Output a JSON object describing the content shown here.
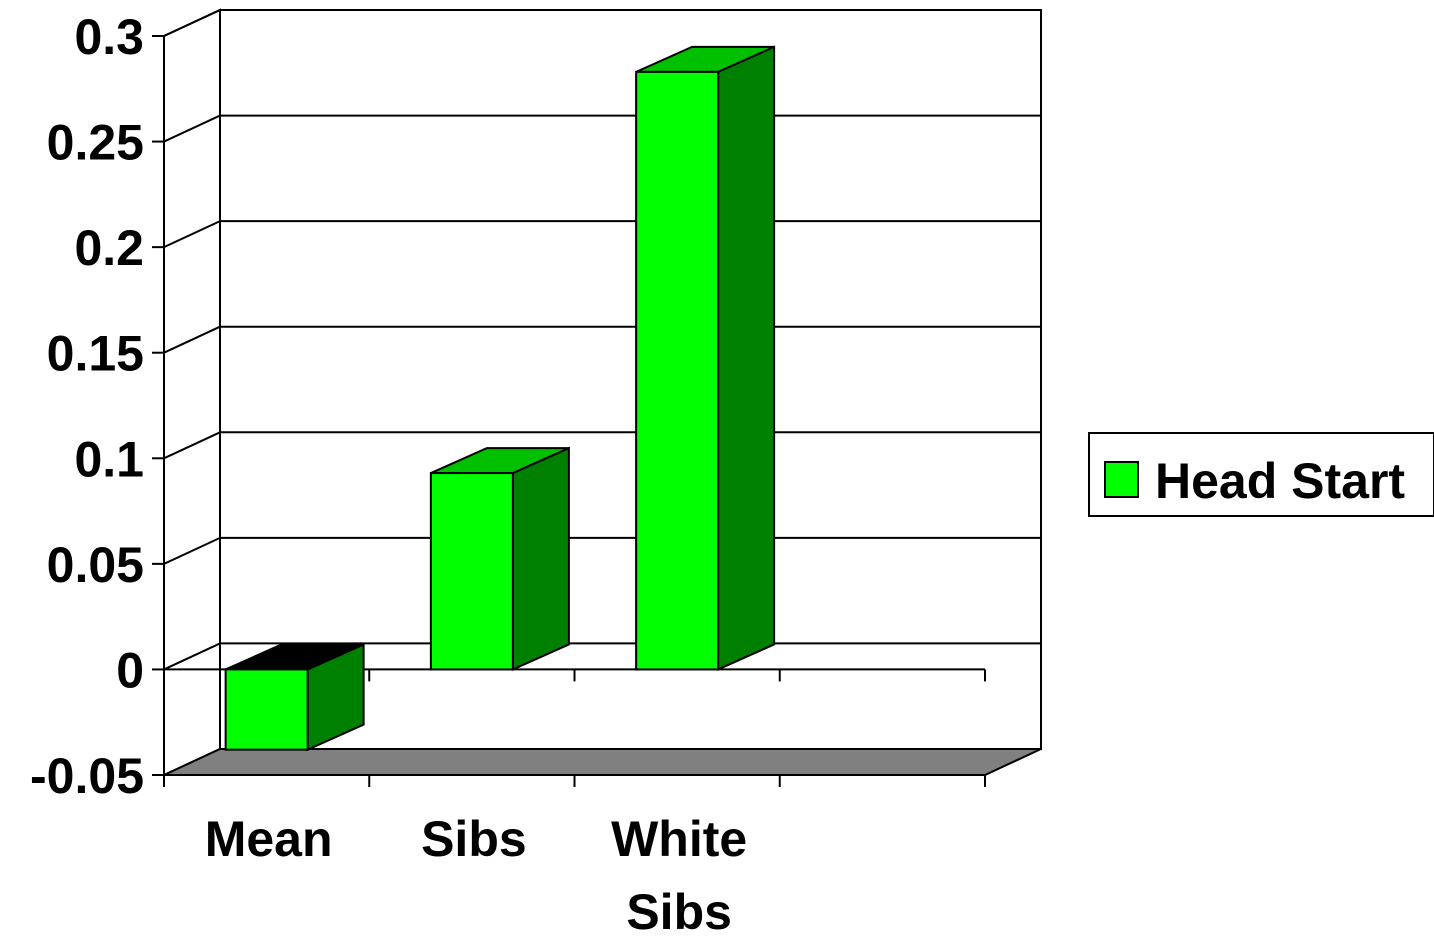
{
  "chart_data": {
    "type": "bar",
    "style": "3d-clustered-column",
    "categories": [
      [
        "Mean"
      ],
      [
        "Sibs"
      ],
      [
        "White",
        "Sibs"
      ]
    ],
    "series": [
      {
        "name": "Head Start",
        "values": [
          -0.038,
          0.093,
          0.283
        ],
        "color": "#00ff00",
        "side_color": "#008000",
        "top_color": "#00c000"
      }
    ],
    "ylim": [
      -0.05,
      0.3
    ],
    "yticks": [
      "-0.05",
      "0",
      "0.05",
      "0.1",
      "0.15",
      "0.2",
      "0.25",
      "0.3"
    ],
    "ytick_values": [
      -0.05,
      0,
      0.05,
      0.1,
      0.15,
      0.2,
      0.25,
      0.3
    ],
    "n_slots": 4,
    "grid": true,
    "legend_position": "right",
    "floor_color": "#808080"
  }
}
